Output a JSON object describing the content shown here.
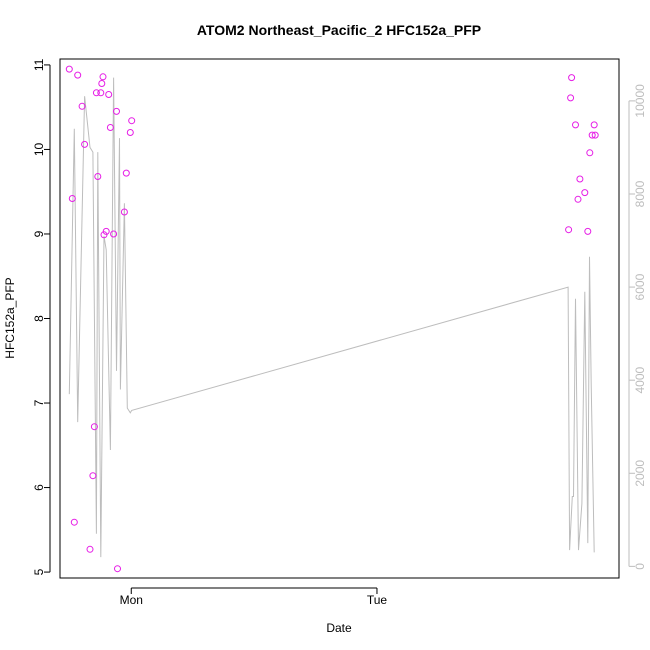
{
  "chart_data": {
    "type": "scatter",
    "title": "ATOM2 Northeast_Pacific_2 HFC152a_PFP",
    "xlabel": "Date",
    "ylabel": "HFC152a_PFP",
    "ylabel_right": "",
    "xlim": [
      -0.29,
      1.985
    ],
    "ylim": [
      4.93,
      11.07
    ],
    "ylim_right": [
      -250,
      10900
    ],
    "x_ticks": [
      0,
      1
    ],
    "x_tick_labels": [
      "Mon",
      "Tue"
    ],
    "y_ticks": [
      5,
      6,
      7,
      8,
      9,
      10,
      11
    ],
    "y_tick_labels": [
      "5",
      "6",
      "7",
      "8",
      "9",
      "10",
      "11"
    ],
    "y_ticks_right": [
      0,
      2000,
      4000,
      6000,
      8000,
      10000
    ],
    "y_tick_labels_right": [
      "0",
      "2000",
      "4000",
      "6000",
      "8000",
      "10000"
    ],
    "colors": {
      "points": "#e61ee6",
      "line": "#bdbdbd",
      "right_axis": "#bdbdbd"
    },
    "series": [
      {
        "kind": "points",
        "axis": "left",
        "x": [
          -0.252,
          -0.24,
          -0.232,
          -0.218,
          -0.2,
          -0.19,
          -0.168,
          -0.156,
          -0.15,
          -0.142,
          -0.136,
          -0.124,
          -0.12,
          -0.115,
          -0.111,
          -0.102,
          -0.092,
          -0.085,
          -0.072,
          -0.06,
          -0.056,
          -0.028,
          -0.02,
          -0.004,
          0.002,
          1.78,
          1.788,
          1.792,
          1.808,
          1.818,
          1.826,
          1.846,
          1.858,
          1.866,
          1.876,
          1.884,
          1.888
        ],
        "y": [
          10.95,
          9.42,
          5.59,
          10.88,
          10.51,
          10.06,
          5.27,
          6.14,
          6.72,
          10.67,
          9.68,
          10.67,
          10.78,
          10.86,
          8.99,
          9.03,
          10.65,
          10.26,
          9.0,
          10.45,
          5.04,
          9.26,
          9.72,
          10.2,
          10.34,
          9.05,
          10.61,
          10.85,
          10.29,
          9.41,
          9.65,
          9.49,
          9.03,
          9.96,
          10.17,
          10.29,
          10.17
        ]
      },
      {
        "kind": "line",
        "axis": "right",
        "x": [
          -0.252,
          -0.232,
          -0.218,
          -0.19,
          -0.168,
          -0.156,
          -0.142,
          -0.136,
          -0.124,
          -0.111,
          -0.102,
          -0.085,
          -0.072,
          -0.06,
          -0.048,
          -0.044,
          -0.028,
          -0.016,
          -0.004,
          0.002,
          1.778,
          1.784,
          1.795,
          1.8,
          1.808,
          1.82,
          1.834,
          1.846,
          1.858,
          1.865,
          1.872,
          1.884
        ],
        "y": [
          3700,
          9400,
          3100,
          10100,
          9000,
          8900,
          700,
          8900,
          200,
          7100,
          6800,
          2500,
          10500,
          4200,
          9200,
          3800,
          7800,
          3400,
          3300,
          3350,
          6000,
          350,
          1500,
          1500,
          5750,
          350,
          1350,
          5900,
          500,
          6650,
          3900,
          300
        ]
      }
    ]
  }
}
